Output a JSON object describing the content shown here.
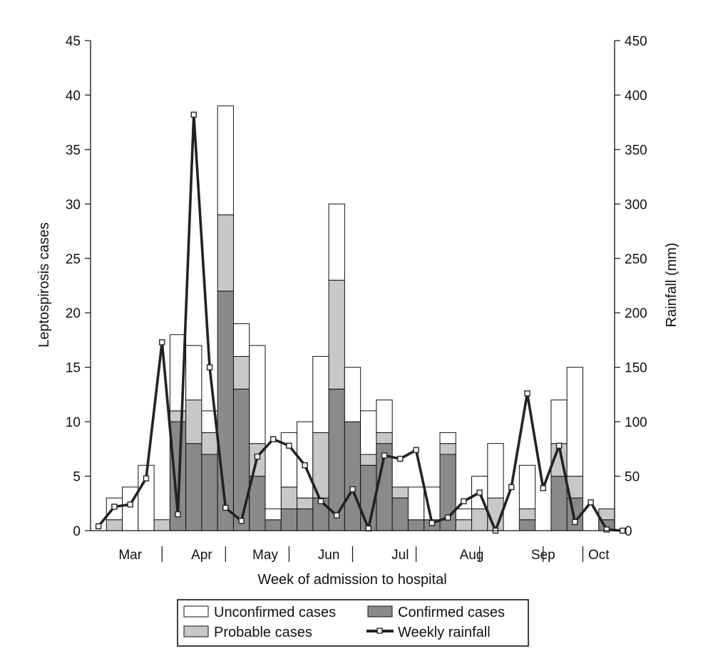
{
  "chart_data": {
    "type": "bar",
    "stacked": true,
    "xlabel": "Week of admission to hospital",
    "ylabel": "Leptospirosis cases",
    "y2label": "Rainfall (mm)",
    "ylim": [
      0,
      45
    ],
    "y2lim": [
      0,
      450
    ],
    "y_ticks": [
      "0",
      "5",
      "10",
      "15",
      "20",
      "25",
      "30",
      "35",
      "40",
      "45"
    ],
    "y2_ticks": [
      "0",
      "50",
      "100",
      "150",
      "200",
      "250",
      "300",
      "350",
      "400",
      "450"
    ],
    "months": [
      "Mar",
      "Apr",
      "May",
      "Jun",
      "Jul",
      "Aug",
      "Sep",
      "Oct"
    ],
    "month_label_weeks": [
      2.5,
      7,
      11,
      15,
      19.5,
      24,
      28.5,
      32
    ],
    "month_separator_weeks": [
      4.5,
      8.5,
      12.5,
      16.5,
      20.5,
      24.5,
      28.5,
      31
    ],
    "grid": false,
    "legend_position": "bottom",
    "series": [
      {
        "name": "Confirmed cases",
        "color": "#8a8a8a",
        "values": [
          0,
          0,
          0,
          0,
          0,
          10,
          8,
          7,
          22,
          13,
          5,
          1,
          2,
          2,
          3,
          13,
          10,
          6,
          8,
          3,
          1,
          1,
          7,
          0,
          0,
          0,
          0,
          1,
          0,
          5,
          3,
          0,
          1
        ]
      },
      {
        "name": "Probable cases",
        "color": "#c8c8c8",
        "values": [
          0,
          1,
          0,
          0,
          1,
          1,
          4,
          2,
          7,
          3,
          3,
          0,
          2,
          1,
          6,
          10,
          0,
          1,
          1,
          1,
          0,
          0,
          1,
          1,
          2,
          3,
          0,
          1,
          0,
          3,
          2,
          0,
          1
        ]
      },
      {
        "name": "Unconfirmed cases",
        "color": "#ffffff",
        "values": [
          0,
          2,
          4,
          6,
          0,
          7,
          5,
          2,
          10,
          3,
          9,
          1,
          5,
          7,
          7,
          7,
          5,
          4,
          3,
          0,
          3,
          3,
          1,
          1,
          3,
          5,
          0,
          4,
          0,
          4,
          10,
          0,
          0
        ]
      },
      {
        "name": "Weekly rainfall",
        "type": "line",
        "axis": "y2",
        "color": "#222222",
        "values": [
          4,
          22,
          24,
          48,
          173,
          15,
          382,
          150,
          21,
          9,
          68,
          84,
          78,
          60,
          27,
          14,
          38,
          2,
          69,
          66,
          74,
          7,
          12,
          27,
          35,
          0,
          40,
          126,
          39,
          78,
          8,
          26,
          1,
          0
        ]
      }
    ]
  },
  "legend": {
    "unconfirmed": "Unconfirmed cases",
    "confirmed": "Confirmed cases",
    "probable": "Probable cases",
    "rainfall": "Weekly rainfall"
  }
}
